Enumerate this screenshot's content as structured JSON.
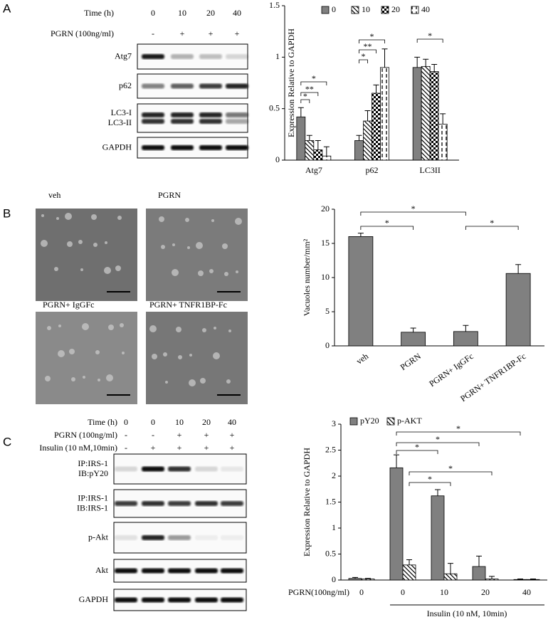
{
  "figure": {
    "panel_labels": [
      "A",
      "B",
      "C"
    ],
    "blot_a": {
      "time_label": "Time (h)",
      "times": [
        "0",
        "10",
        "20",
        "40"
      ],
      "treatment_label": "PGRN (100ng/ml)",
      "treatment": [
        "-",
        "+",
        "+",
        "+"
      ],
      "rows": [
        [
          "Atg7"
        ],
        [
          "p62"
        ],
        [
          "LC3-I",
          "LC3-II"
        ],
        [
          "GAPDH"
        ]
      ]
    },
    "micrographs": [
      "veh",
      "PGRN",
      "PGRN+ IgGFc",
      "PGRN+ TNFR1BP-Fc"
    ],
    "blot_c": {
      "time_label": "Time (h)",
      "times": [
        "0",
        "0",
        "10",
        "20",
        "40"
      ],
      "pgrn_label": "PGRN  (100ng/ml)",
      "pgrn": [
        "-",
        "-",
        "+",
        "+",
        "+"
      ],
      "insulin_label": "Insulin (10 nM,10min)",
      "insulin": [
        "-",
        "+",
        "+",
        "+",
        "+"
      ],
      "rows": [
        [
          "IP:IRS-1",
          "IB:pY20"
        ],
        [
          "IP:IRS-1",
          "IB:IRS-1"
        ],
        [
          "p-Akt"
        ],
        [
          "Akt"
        ],
        [
          "GAPDH"
        ]
      ]
    }
  },
  "chart_data": [
    {
      "type": "bar",
      "ylabel": "Expression Relative to GAPDH",
      "categories": [
        "Atg7",
        "p62",
        "LC3II"
      ],
      "series": [
        {
          "name": "0",
          "color": "#808080",
          "pattern": "solid",
          "values": [
            0.42,
            0.19,
            0.9
          ],
          "errors": [
            0.09,
            0.05,
            0.1
          ]
        },
        {
          "name": "10",
          "color": "#ffffff",
          "pattern": "diagonal",
          "values": [
            0.19,
            0.38,
            0.91
          ],
          "errors": [
            0.05,
            0.1,
            0.07
          ]
        },
        {
          "name": "20",
          "color": "#ffffff",
          "pattern": "checker",
          "values": [
            0.1,
            0.65,
            0.86
          ],
          "errors": [
            0.09,
            0.08,
            0.07
          ]
        },
        {
          "name": "40",
          "color": "#ffffff",
          "pattern": "dashed",
          "values": [
            0.04,
            0.9,
            0.35
          ],
          "errors": [
            0.09,
            0.18,
            0.1
          ]
        }
      ],
      "ylim": [
        0,
        1.5
      ],
      "yticks": [
        0,
        0.5,
        1,
        1.5
      ],
      "legend": "top",
      "annotations": [
        "*",
        "**",
        "*",
        "*",
        "**",
        "*",
        "*"
      ]
    },
    {
      "type": "bar",
      "ylabel": "Vacuoles number/mm²",
      "categories": [
        "veh",
        "PGRN",
        "PGRN+ IgGFc",
        "PGRN+ TNFR1BP-Fc"
      ],
      "values": [
        16,
        2,
        2.1,
        10.6
      ],
      "errors": [
        0.5,
        0.6,
        0.9,
        1.3
      ],
      "color": "#808080",
      "pattern": "solid",
      "ylim": [
        0,
        20
      ],
      "yticks": [
        0,
        5,
        10,
        15,
        20
      ],
      "annotations": [
        "*",
        "*",
        "*"
      ]
    },
    {
      "type": "bar",
      "ylabel": "Expression Relative to GAPDH",
      "xlabel": "PGRN(100ng/ml)",
      "group_label": "Insulin (10 nM, 10min)",
      "categories": [
        "0",
        "0",
        "10",
        "20",
        "40"
      ],
      "series": [
        {
          "name": "pY20",
          "color": "#808080",
          "pattern": "solid",
          "values": [
            0.03,
            2.16,
            1.62,
            0.26,
            0.01
          ],
          "errors": [
            0.02,
            0.25,
            0.12,
            0.2,
            0.01
          ]
        },
        {
          "name": "p-AKT",
          "color": "#ffffff",
          "pattern": "diagonal",
          "values": [
            0.02,
            0.29,
            0.12,
            0.02,
            0.01
          ],
          "errors": [
            0.01,
            0.1,
            0.2,
            0.05,
            0.01
          ]
        }
      ],
      "ylim": [
        0,
        3
      ],
      "yticks": [
        0,
        0.5,
        1,
        1.5,
        2,
        2.5,
        3
      ],
      "legend": "top",
      "annotations": [
        "*",
        "*",
        "*",
        "*",
        "*"
      ]
    }
  ]
}
